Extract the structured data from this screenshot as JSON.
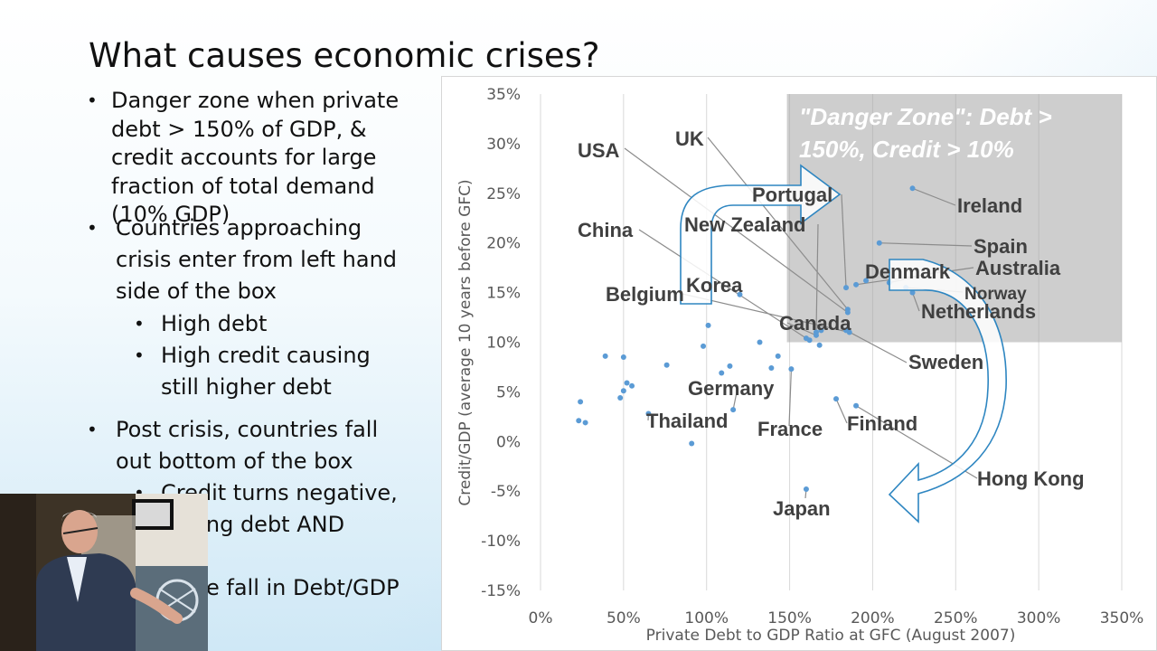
{
  "slide": {
    "title": "What causes economic crises?",
    "bullets": [
      {
        "text": "Danger zone when private debt > 150% of GDP, & credit accounts for large fraction of total demand (10% GDP)"
      },
      {
        "text": "Countries approaching crisis enter from left hand side of the box"
      },
      {
        "text": "High debt"
      },
      {
        "text": "High credit causing still higher debt"
      },
      {
        "text": "Post crisis, countries fall out bottom of the box"
      },
      {
        "text": "Credit turns negative,"
      },
      {
        "text": "cing debt AND"
      },
      {
        "text": "e fall in Debt/GDP"
      }
    ]
  },
  "chart_data": {
    "type": "scatter",
    "xlabel": "Private Debt to GDP Ratio at GFC (August 2007)",
    "ylabel": "Credit/GDP (average 10 years before GFC)",
    "xlim": [
      0,
      350
    ],
    "ylim": [
      -15,
      35
    ],
    "x_unit": "%",
    "y_unit": "%",
    "x_ticks": [
      0,
      50,
      100,
      150,
      200,
      250,
      300,
      350
    ],
    "y_ticks": [
      -15,
      -10,
      -5,
      0,
      5,
      10,
      15,
      20,
      25,
      30,
      35
    ],
    "x_tick_labels": [
      "0%",
      "50%",
      "100%",
      "150%",
      "200%",
      "250%",
      "300%",
      "350%"
    ],
    "y_tick_labels": [
      "-15%",
      "-10%",
      "-5%",
      "0%",
      "5%",
      "10%",
      "15%",
      "20%",
      "25%",
      "30%",
      "35%"
    ],
    "grid": "vertical",
    "danger_zone": {
      "x": [
        150,
        350
      ],
      "y": [
        10,
        35
      ],
      "label_line1": "\"Danger Zone\": Debt >",
      "label_line2": "150%, Credit > 10%"
    },
    "labeled_points": [
      {
        "name": "Ireland",
        "x": 224,
        "y": 25.5
      },
      {
        "name": "Spain",
        "x": 204,
        "y": 20
      },
      {
        "name": "Denmark",
        "x": 210,
        "y": 16
      },
      {
        "name": "Australia",
        "x": 190,
        "y": 15.8
      },
      {
        "name": "Norway",
        "x": 220,
        "y": 15.5
      },
      {
        "name": "Netherlands",
        "x": 224,
        "y": 15
      },
      {
        "name": "Portugal",
        "x": 184,
        "y": 15.5
      },
      {
        "name": "UK",
        "x": 185,
        "y": 13.3
      },
      {
        "name": "USA",
        "x": 185,
        "y": 13
      },
      {
        "name": "New Zealand",
        "x": 166,
        "y": 11
      },
      {
        "name": "China",
        "x": 160,
        "y": 10.4
      },
      {
        "name": "Korea",
        "x": 120,
        "y": 14.8
      },
      {
        "name": "Canada",
        "x": 166,
        "y": 10.7
      },
      {
        "name": "Belgium",
        "x": 186,
        "y": 11
      },
      {
        "name": "Sweden",
        "x": 184,
        "y": 11.2
      },
      {
        "name": "Germany",
        "x": 116,
        "y": 3.2
      },
      {
        "name": "France",
        "x": 151,
        "y": 7.3
      },
      {
        "name": "Finland",
        "x": 178,
        "y": 4.3
      },
      {
        "name": "Thailand",
        "x": 65,
        "y": 2.8
      },
      {
        "name": "Hong Kong",
        "x": 190,
        "y": 3.6
      },
      {
        "name": "Japan",
        "x": 160,
        "y": -4.8
      }
    ],
    "other_points": [
      {
        "x": 23,
        "y": 2.1
      },
      {
        "x": 24,
        "y": 4.0
      },
      {
        "x": 27,
        "y": 1.9
      },
      {
        "x": 39,
        "y": 8.6
      },
      {
        "x": 48,
        "y": 4.4
      },
      {
        "x": 50,
        "y": 5.1
      },
      {
        "x": 50,
        "y": 8.5
      },
      {
        "x": 52,
        "y": 5.9
      },
      {
        "x": 55,
        "y": 5.6
      },
      {
        "x": 76,
        "y": 7.7
      },
      {
        "x": 91,
        "y": -0.2
      },
      {
        "x": 98,
        "y": 9.6
      },
      {
        "x": 101,
        "y": 11.7
      },
      {
        "x": 109,
        "y": 6.9
      },
      {
        "x": 114,
        "y": 7.6
      },
      {
        "x": 132,
        "y": 10.0
      },
      {
        "x": 139,
        "y": 7.4
      },
      {
        "x": 143,
        "y": 8.6
      },
      {
        "x": 162,
        "y": 10.2
      },
      {
        "x": 168,
        "y": 9.7
      },
      {
        "x": 169,
        "y": 11.2
      },
      {
        "x": 196,
        "y": 16.2
      }
    ],
    "colors": {
      "points": "#5b9bd5",
      "danger_zone": "#a6a6a6",
      "arrow_outline": "#2e86c1",
      "labels": "#404040"
    }
  },
  "colors": {
    "title": "#111111",
    "text": "#111111",
    "point": "#5b9bd5"
  }
}
